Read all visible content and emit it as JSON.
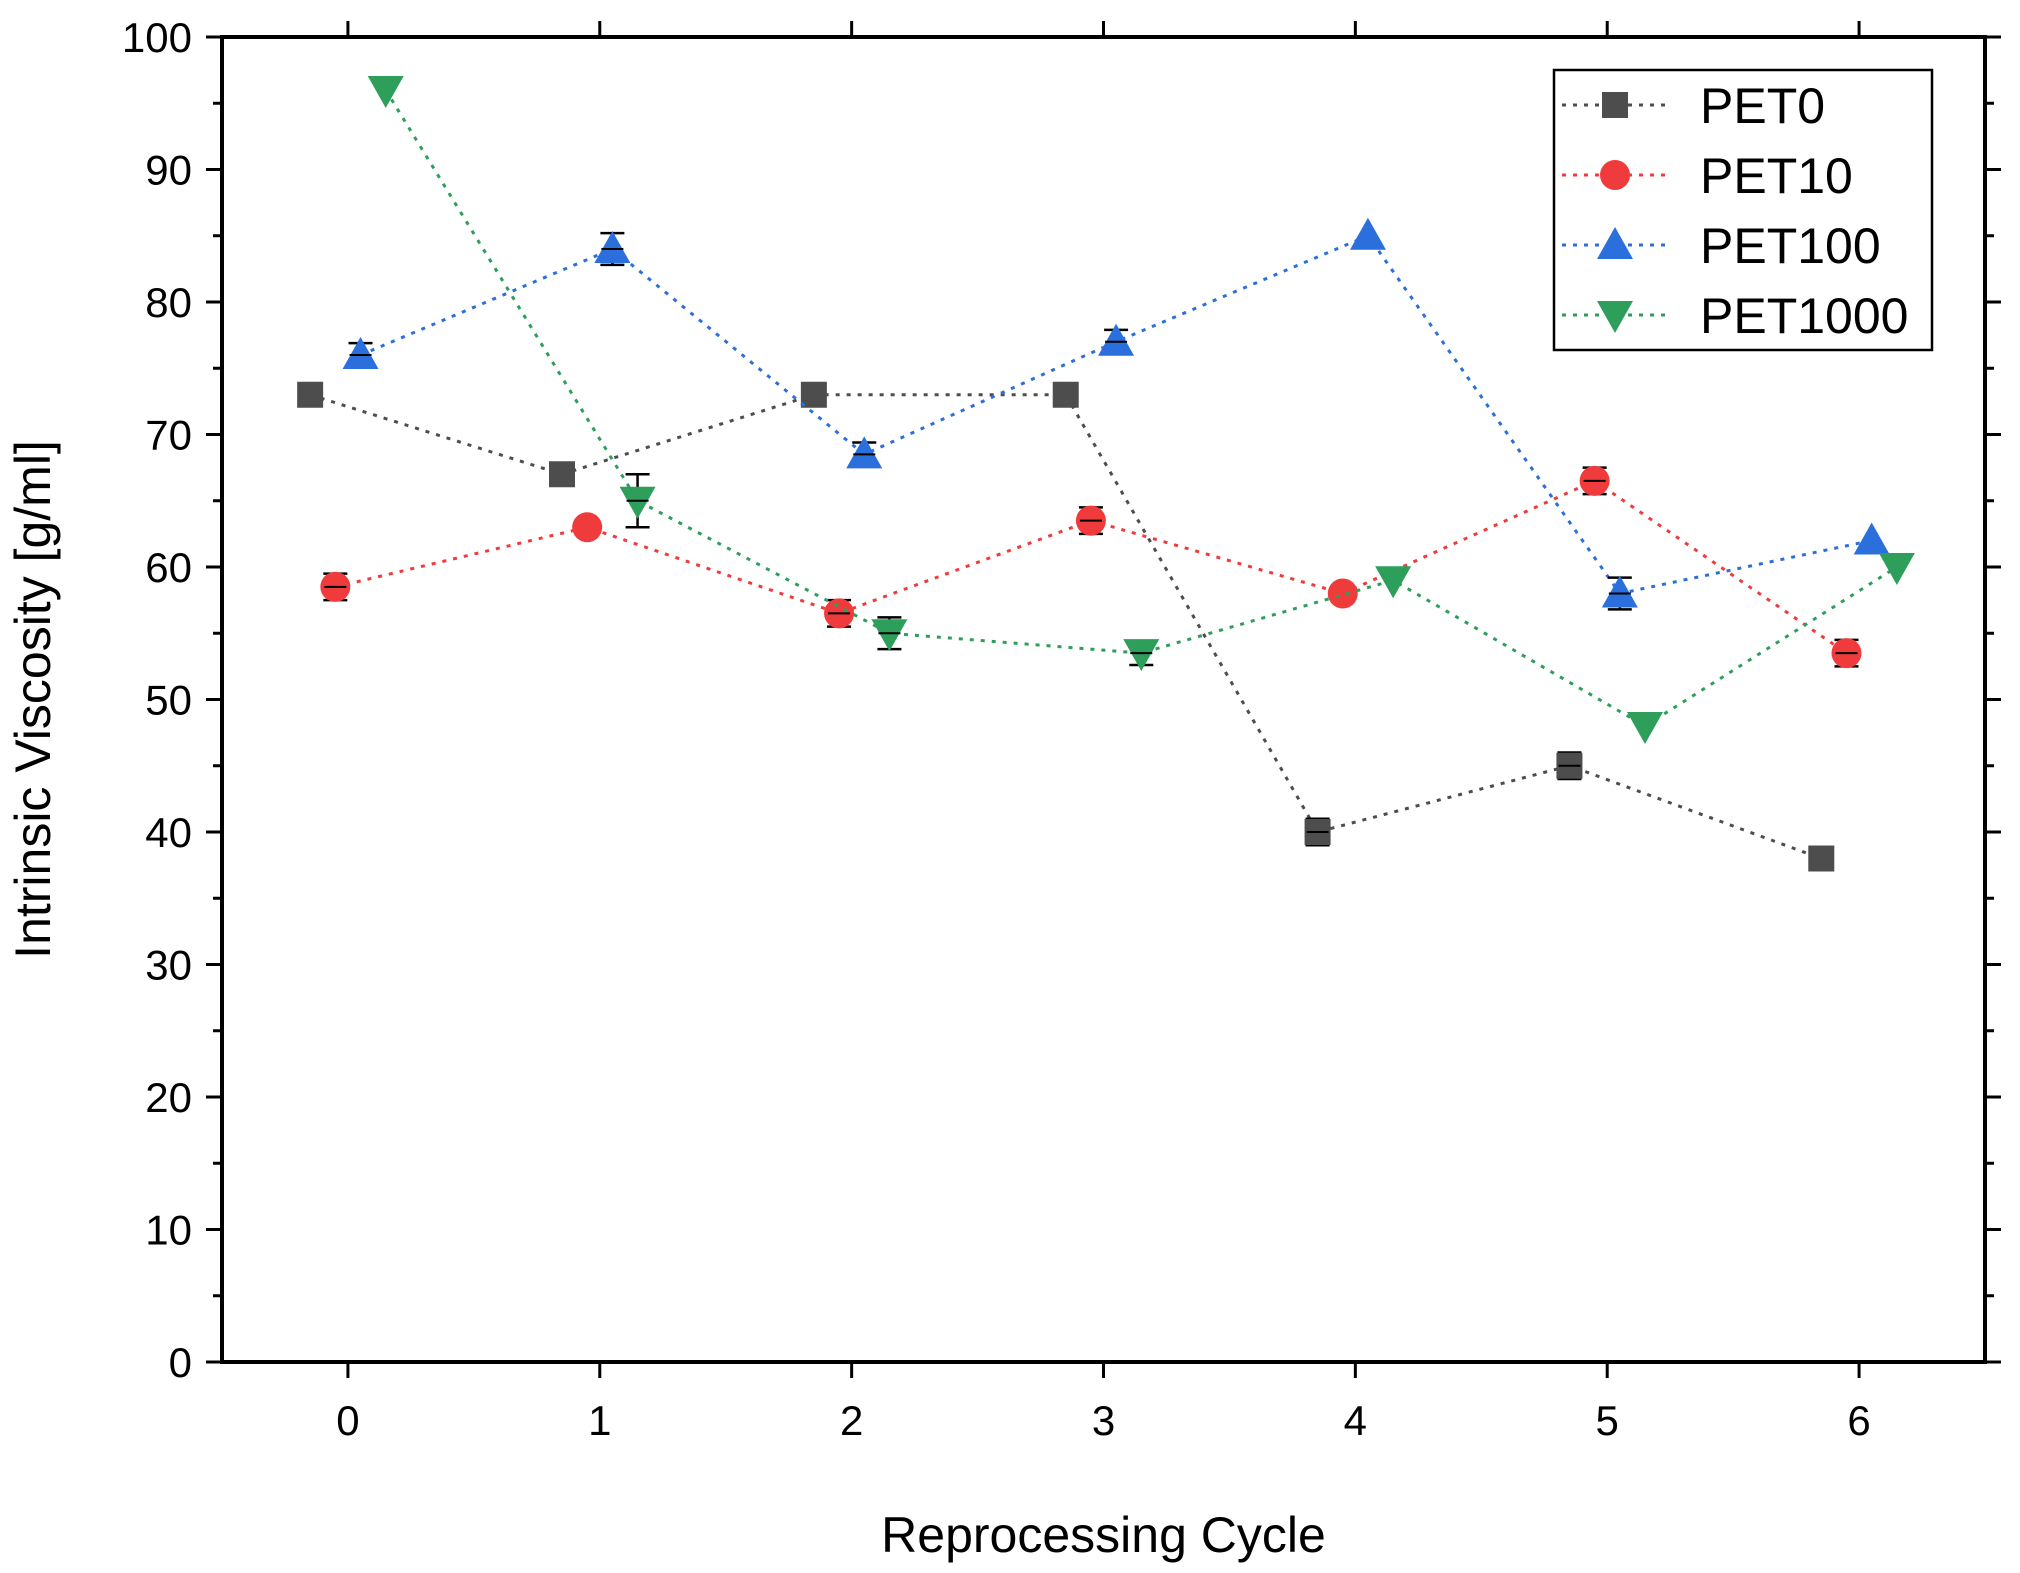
{
  "chart_data": {
    "type": "scatter",
    "title": "",
    "xlabel": "Reprocessing Cycle",
    "ylabel": "Intrinsic Viscosity [g/ml]",
    "xlim": [
      -0.5,
      6.5
    ],
    "ylim": [
      0,
      100
    ],
    "x_ticks": [
      "0",
      "1",
      "2",
      "3",
      "4",
      "5",
      "6"
    ],
    "y_ticks": [
      "0",
      "10",
      "20",
      "30",
      "40",
      "50",
      "60",
      "70",
      "80",
      "90",
      "100"
    ],
    "grid": false,
    "legend_position": "top-right",
    "series": [
      {
        "name": "PET0",
        "color": "#4d4d4d",
        "marker": "square",
        "points": [
          {
            "x": -0.15,
            "y": 73,
            "err": 0
          },
          {
            "x": 0.85,
            "y": 67,
            "err": 0
          },
          {
            "x": 1.85,
            "y": 73,
            "err": 0
          },
          {
            "x": 2.85,
            "y": 73,
            "err": 0
          },
          {
            "x": 3.85,
            "y": 40,
            "err": 1.0
          },
          {
            "x": 4.85,
            "y": 45,
            "err": 1.0
          },
          {
            "x": 5.85,
            "y": 38,
            "err": 0
          }
        ]
      },
      {
        "name": "PET10",
        "color": "#ef3b3b",
        "marker": "circle",
        "points": [
          {
            "x": -0.05,
            "y": 58.5,
            "err": 1.0
          },
          {
            "x": 0.95,
            "y": 63,
            "err": 0
          },
          {
            "x": 1.95,
            "y": 56.5,
            "err": 1.0
          },
          {
            "x": 2.95,
            "y": 63.5,
            "err": 1.0
          },
          {
            "x": 3.95,
            "y": 58,
            "err": 0
          },
          {
            "x": 4.95,
            "y": 66.5,
            "err": 1.0
          },
          {
            "x": 5.95,
            "y": 53.5,
            "err": 1.0
          }
        ]
      },
      {
        "name": "PET100",
        "color": "#2a6fdb",
        "marker": "triangle-up",
        "points": [
          {
            "x": 0.05,
            "y": 76,
            "err": 0.9
          },
          {
            "x": 1.05,
            "y": 84,
            "err": 1.2
          },
          {
            "x": 2.05,
            "y": 68.5,
            "err": 0.9
          },
          {
            "x": 3.05,
            "y": 77,
            "err": 0.9
          },
          {
            "x": 4.05,
            "y": 85,
            "err": 0
          },
          {
            "x": 5.05,
            "y": 58,
            "err": 1.2
          },
          {
            "x": 6.05,
            "y": 62,
            "err": 0
          }
        ]
      },
      {
        "name": "PET1000",
        "color": "#2e9e5b",
        "marker": "triangle-down",
        "points": [
          {
            "x": 0.15,
            "y": 96,
            "err": 0
          },
          {
            "x": 1.15,
            "y": 65,
            "err": 2.0
          },
          {
            "x": 2.15,
            "y": 55,
            "err": 1.2
          },
          {
            "x": 3.15,
            "y": 53.5,
            "err": 0.9
          },
          {
            "x": 4.15,
            "y": 59,
            "err": 0
          },
          {
            "x": 5.15,
            "y": 48,
            "err": 0
          },
          {
            "x": 6.15,
            "y": 60,
            "err": 0
          }
        ]
      }
    ]
  }
}
